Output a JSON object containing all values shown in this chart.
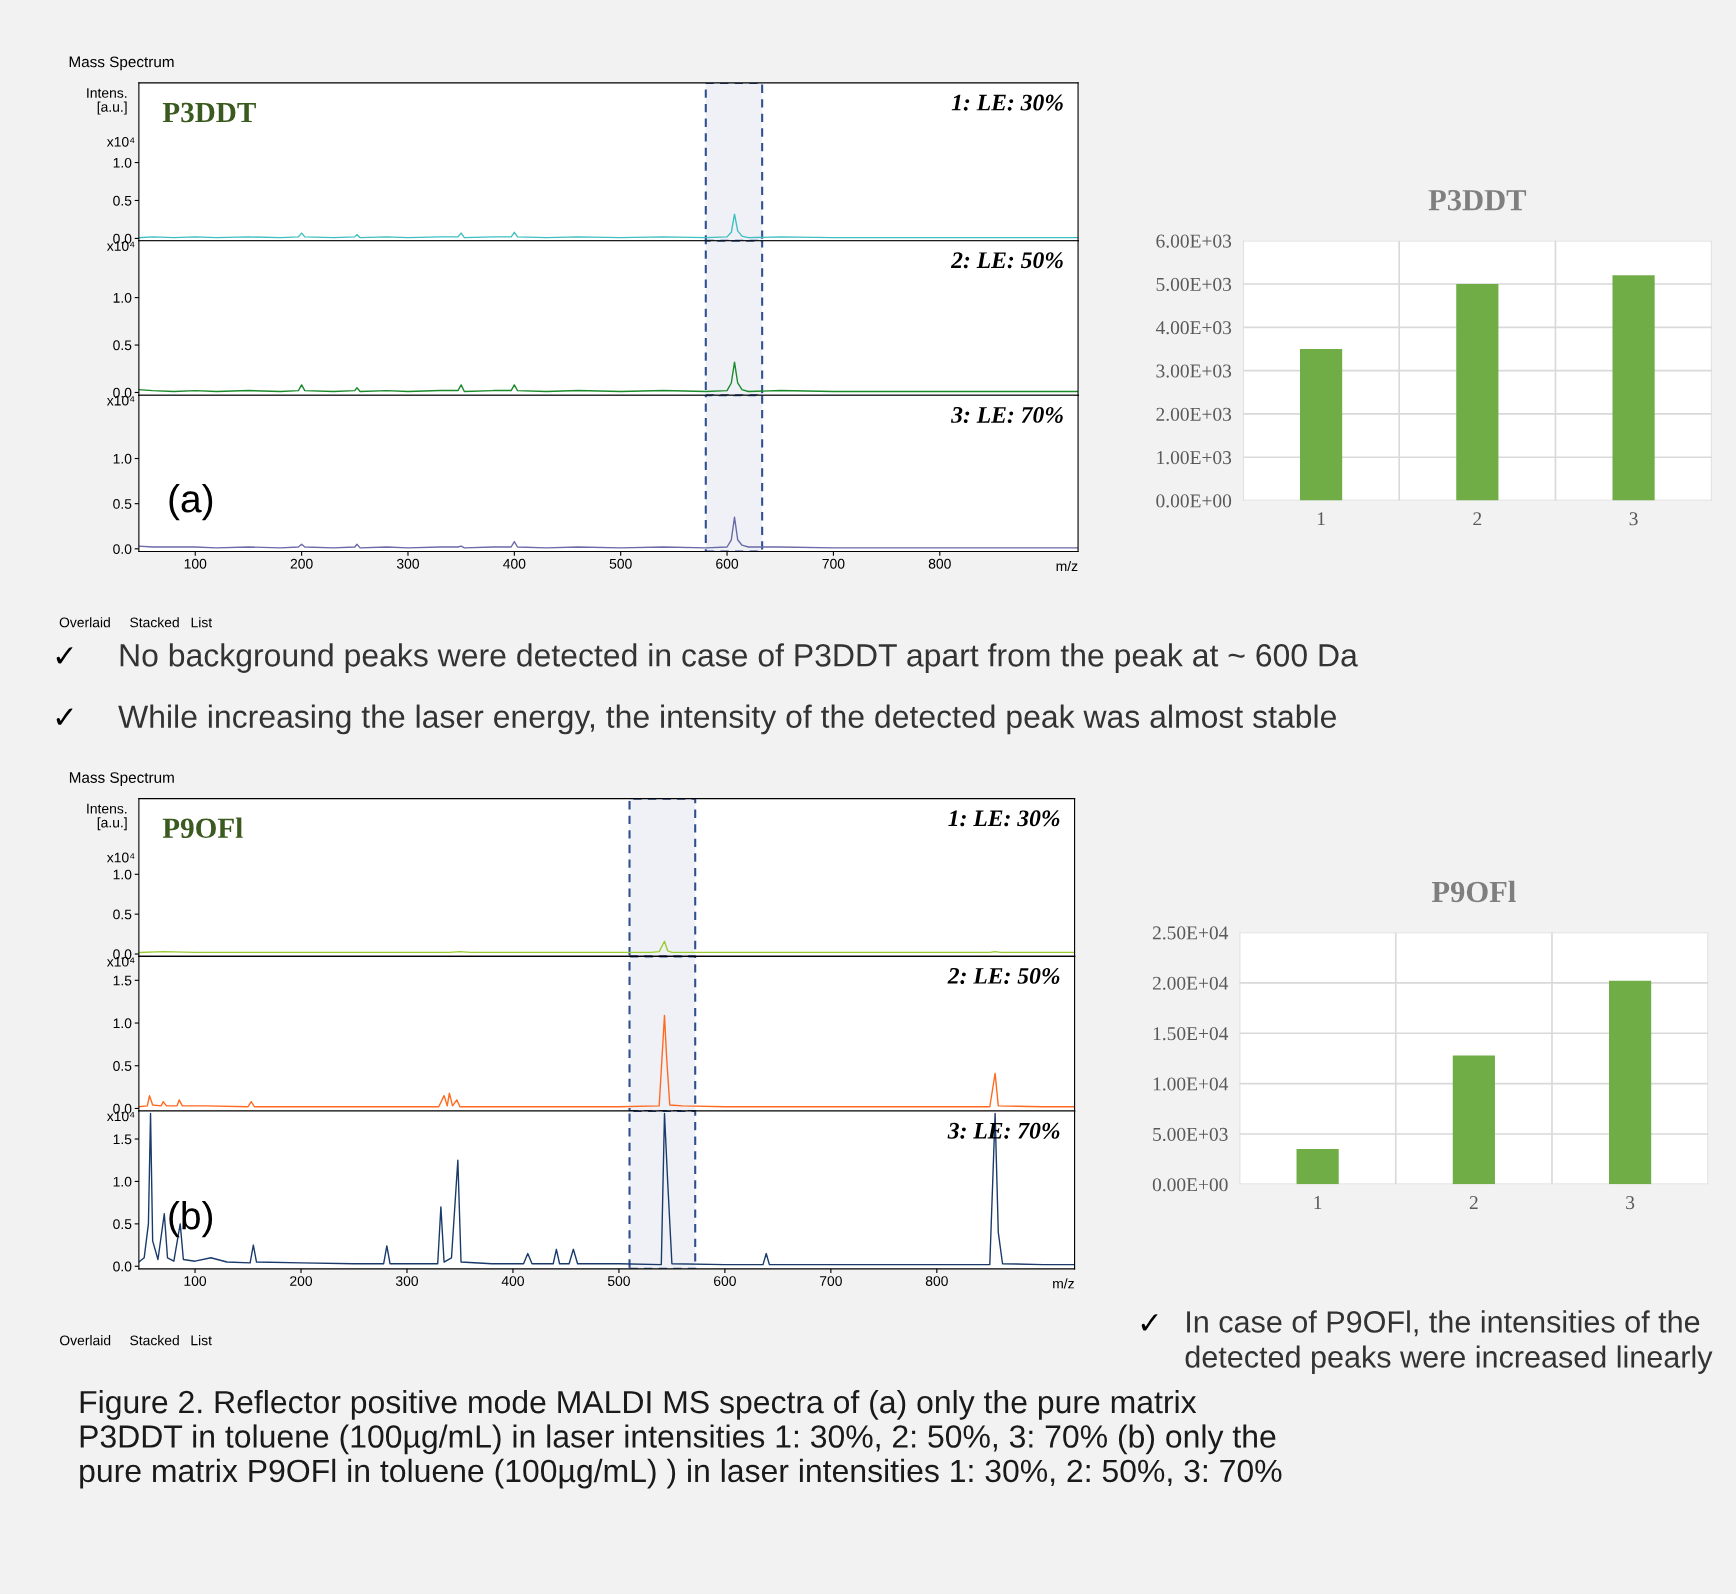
{
  "chart_data": [
    {
      "type": "line",
      "ylabel": "Intens.\n[a.u.]",
      "annotations": [
        "1: LE: 30%",
        "x10⁴",
        "P3DDT",
        "Mass Spectrum"
      ],
      "xlim": [
        47,
        930
      ],
      "xticks": [
        100,
        200,
        300,
        400,
        500,
        600,
        700,
        800
      ],
      "ylim": [
        -0.03,
        2.05
      ],
      "yticks": [
        {
          "value": 0,
          "label": "0.0"
        },
        {
          "value": 0.5,
          "label": "0.5"
        },
        {
          "value": 1,
          "label": "1.0"
        }
      ],
      "tick_labels": "y",
      "series": [
        {
          "color": "#3fbfbf",
          "x": [
            47,
            60,
            80,
            100,
            120,
            150,
            180,
            197,
            200,
            203,
            230,
            250,
            252,
            255,
            280,
            300,
            330,
            347,
            350,
            353,
            380,
            397,
            400,
            403,
            430,
            460,
            500,
            540,
            580,
            600,
            604,
            607,
            610,
            614,
            620,
            650,
            700,
            750,
            800,
            850,
            900,
            930
          ],
          "values": [
            0.01,
            0.02,
            0.01,
            0.02,
            0.01,
            0.02,
            0.01,
            0.02,
            0.07,
            0.02,
            0.01,
            0.02,
            0.05,
            0.01,
            0.02,
            0.01,
            0.02,
            0.02,
            0.07,
            0.01,
            0.02,
            0.02,
            0.08,
            0.02,
            0.01,
            0.02,
            0.01,
            0.02,
            0.01,
            0.02,
            0.08,
            0.32,
            0.1,
            0.03,
            0.01,
            0.02,
            0.01,
            0.01,
            0.01,
            0.01,
            0.01,
            0.01
          ]
        }
      ],
      "bands": [
        {
          "axis": "x",
          "from": 580,
          "to": 633,
          "color": "#2f4f8f"
        }
      ]
    },
    {
      "type": "line",
      "annotations": [
        "2: LE: 50%",
        "x10⁴"
      ],
      "xlim": [
        47,
        930
      ],
      "xticks": [
        100,
        200,
        300,
        400,
        500,
        600,
        700,
        800
      ],
      "ylim": [
        -0.03,
        1.6
      ],
      "yticks": [
        {
          "value": 0,
          "label": "0.0"
        },
        {
          "value": 0.5,
          "label": "0.5"
        },
        {
          "value": 1,
          "label": "1.0"
        }
      ],
      "tick_labels": "y",
      "series": [
        {
          "color": "#1a8a2a",
          "x": [
            47,
            60,
            80,
            100,
            120,
            150,
            180,
            197,
            200,
            203,
            230,
            250,
            252,
            255,
            280,
            300,
            330,
            347,
            350,
            353,
            380,
            397,
            400,
            403,
            430,
            460,
            500,
            540,
            580,
            600,
            604,
            607,
            610,
            614,
            620,
            650,
            700,
            750,
            800,
            850,
            900,
            930
          ],
          "values": [
            0.03,
            0.02,
            0.01,
            0.02,
            0.01,
            0.02,
            0.01,
            0.02,
            0.08,
            0.02,
            0.01,
            0.02,
            0.05,
            0.01,
            0.02,
            0.01,
            0.02,
            0.02,
            0.08,
            0.01,
            0.02,
            0.02,
            0.08,
            0.02,
            0.01,
            0.02,
            0.01,
            0.02,
            0.01,
            0.02,
            0.1,
            0.32,
            0.1,
            0.03,
            0.01,
            0.02,
            0.01,
            0.01,
            0.01,
            0.01,
            0.01,
            0.01
          ]
        }
      ],
      "bands": [
        {
          "axis": "x",
          "from": 580,
          "to": 633,
          "color": "#2f4f8f"
        }
      ]
    },
    {
      "type": "line",
      "xlabel": "m/z",
      "annotations": [
        "3: LE: 70%",
        "x10⁴",
        "(a)",
        "Overlaid",
        "Stacked",
        "List"
      ],
      "xlim": [
        47,
        930
      ],
      "xticks": [
        100,
        200,
        300,
        400,
        500,
        600,
        700,
        800
      ],
      "ylim": [
        -0.03,
        1.7
      ],
      "yticks": [
        {
          "value": 0,
          "label": "0.0"
        },
        {
          "value": 0.5,
          "label": "0.5"
        },
        {
          "value": 1,
          "label": "1.0"
        }
      ],
      "series": [
        {
          "color": "#6a6aa8",
          "x": [
            47,
            60,
            80,
            100,
            120,
            150,
            180,
            197,
            200,
            203,
            230,
            250,
            252,
            255,
            280,
            300,
            330,
            347,
            350,
            353,
            380,
            397,
            400,
            403,
            430,
            460,
            500,
            540,
            580,
            600,
            604,
            607,
            610,
            614,
            620,
            650,
            700,
            750,
            800,
            850,
            900,
            930
          ],
          "values": [
            0.03,
            0.02,
            0.02,
            0.02,
            0.01,
            0.02,
            0.01,
            0.02,
            0.05,
            0.02,
            0.01,
            0.02,
            0.05,
            0.01,
            0.02,
            0.01,
            0.02,
            0.02,
            0.03,
            0.01,
            0.02,
            0.02,
            0.08,
            0.02,
            0.01,
            0.02,
            0.01,
            0.02,
            0.01,
            0.02,
            0.1,
            0.35,
            0.1,
            0.04,
            0.02,
            0.02,
            0.01,
            0.01,
            0.01,
            0.01,
            0.01,
            0.01
          ]
        }
      ],
      "bands": [
        {
          "axis": "x",
          "from": 580,
          "to": 633,
          "color": "#2f4f8f"
        }
      ]
    },
    {
      "type": "bar",
      "title": "P3DDT",
      "categories": [
        "1",
        "2",
        "3"
      ],
      "values": [
        3500,
        5000,
        5200
      ],
      "color": "#70ad47",
      "ylim": [
        0,
        6000
      ],
      "yticks": [
        {
          "value": 0,
          "label": "0.00E+00"
        },
        {
          "value": 1000,
          "label": "1.00E+03"
        },
        {
          "value": 2000,
          "label": "2.00E+03"
        },
        {
          "value": 3000,
          "label": "3.00E+03"
        },
        {
          "value": 4000,
          "label": "4.00E+03"
        },
        {
          "value": 5000,
          "label": "5.00E+03"
        },
        {
          "value": 6000,
          "label": "6.00E+03"
        }
      ],
      "grid": true
    },
    {
      "type": "other",
      "annotations": [
        "✓",
        "No background peaks were detected in case of P3DDT apart from the peak at ~ 600 Da",
        "✓",
        "While increasing the laser energy, the intensity of the detected peak was almost stable"
      ]
    },
    {
      "type": "line",
      "ylabel": "Intens.\n[a.u.]",
      "annotations": [
        "1: LE: 30%",
        "x10⁴",
        "P9OFl",
        "Mass Spectrum"
      ],
      "xlim": [
        47,
        930
      ],
      "xticks": [
        100,
        200,
        300,
        400,
        500,
        600,
        700,
        800
      ],
      "ylim": [
        -0.03,
        1.95
      ],
      "yticks": [
        {
          "value": 0,
          "label": "0.0"
        },
        {
          "value": 0.5,
          "label": "0.5"
        },
        {
          "value": 1,
          "label": "1.0"
        }
      ],
      "tick_labels": "y",
      "series": [
        {
          "color": "#9acd32",
          "x": [
            47,
            70,
            100,
            130,
            160,
            200,
            250,
            300,
            340,
            350,
            360,
            400,
            450,
            500,
            530,
            538,
            543,
            546,
            550,
            580,
            620,
            700,
            750,
            800,
            850,
            855,
            860,
            900,
            930
          ],
          "values": [
            0.02,
            0.03,
            0.02,
            0.02,
            0.02,
            0.02,
            0.02,
            0.02,
            0.02,
            0.03,
            0.02,
            0.02,
            0.02,
            0.02,
            0.02,
            0.03,
            0.16,
            0.04,
            0.02,
            0.02,
            0.02,
            0.02,
            0.02,
            0.02,
            0.02,
            0.03,
            0.02,
            0.02,
            0.02
          ]
        }
      ],
      "bands": [
        {
          "axis": "x",
          "from": 510,
          "to": 572,
          "color": "#2f4f8f"
        }
      ]
    },
    {
      "type": "line",
      "annotations": [
        "2: LE: 50%",
        "x10⁴"
      ],
      "xlim": [
        47,
        930
      ],
      "xticks": [
        100,
        200,
        300,
        400,
        500,
        600,
        700,
        800
      ],
      "ylim": [
        -0.03,
        1.78
      ],
      "yticks": [
        {
          "value": 0,
          "label": "0.0"
        },
        {
          "value": 0.5,
          "label": "0.5"
        },
        {
          "value": 1,
          "label": "1.0"
        },
        {
          "value": 1.5,
          "label": "1.5"
        }
      ],
      "tick_labels": "y",
      "series": [
        {
          "color": "#ff6a20",
          "x": [
            47,
            55,
            57,
            60,
            68,
            70,
            73,
            83,
            85,
            88,
            110,
            150,
            153,
            156,
            200,
            250,
            300,
            330,
            335,
            338,
            340,
            343,
            347,
            350,
            400,
            450,
            500,
            538,
            543,
            545,
            548,
            560,
            600,
            700,
            800,
            850,
            855,
            858,
            900,
            930
          ],
          "values": [
            0.02,
            0.03,
            0.15,
            0.04,
            0.03,
            0.08,
            0.03,
            0.03,
            0.1,
            0.03,
            0.03,
            0.02,
            0.08,
            0.02,
            0.02,
            0.02,
            0.02,
            0.02,
            0.15,
            0.03,
            0.18,
            0.03,
            0.1,
            0.02,
            0.02,
            0.02,
            0.02,
            0.03,
            1.09,
            0.6,
            0.04,
            0.03,
            0.02,
            0.02,
            0.02,
            0.02,
            0.41,
            0.03,
            0.02,
            0.02
          ]
        }
      ],
      "bands": [
        {
          "axis": "x",
          "from": 510,
          "to": 572,
          "color": "#2f4f8f"
        }
      ]
    },
    {
      "type": "line",
      "xlabel": "m/z",
      "annotations": [
        "3: LE: 70%",
        "x10⁴",
        "(b)",
        "Overlaid",
        "Stacked",
        "List"
      ],
      "xlim": [
        47,
        930
      ],
      "xticks": [
        100,
        200,
        300,
        400,
        500,
        600,
        700,
        800
      ],
      "ylim": [
        -0.03,
        1.83
      ],
      "yticks": [
        {
          "value": 0,
          "label": "0.0"
        },
        {
          "value": 0.5,
          "label": "0.5"
        },
        {
          "value": 1,
          "label": "1.0"
        },
        {
          "value": 1.5,
          "label": "1.5"
        }
      ],
      "series": [
        {
          "color": "#1a3a6a",
          "x": [
            47,
            52,
            56,
            58,
            60,
            65,
            71,
            74,
            80,
            86,
            89,
            100,
            115,
            130,
            152,
            155,
            158,
            200,
            250,
            278,
            281,
            284,
            300,
            329,
            332,
            335,
            342,
            348,
            351,
            380,
            410,
            414,
            418,
            438,
            441,
            444,
            453,
            457,
            461,
            500,
            540,
            543,
            546,
            550,
            600,
            636,
            639,
            642,
            700,
            800,
            850,
            855,
            858,
            862,
            900,
            930
          ],
          "values": [
            0.05,
            0.1,
            0.5,
            1.8,
            0.3,
            0.08,
            0.62,
            0.1,
            0.06,
            0.5,
            0.08,
            0.06,
            0.1,
            0.05,
            0.04,
            0.25,
            0.05,
            0.04,
            0.03,
            0.03,
            0.24,
            0.03,
            0.03,
            0.03,
            0.7,
            0.05,
            0.1,
            1.25,
            0.05,
            0.03,
            0.03,
            0.15,
            0.03,
            0.03,
            0.2,
            0.03,
            0.03,
            0.2,
            0.03,
            0.03,
            0.02,
            1.8,
            1.0,
            0.03,
            0.02,
            0.02,
            0.15,
            0.02,
            0.02,
            0.02,
            0.02,
            1.8,
            0.4,
            0.03,
            0.02,
            0.02
          ]
        }
      ],
      "bands": [
        {
          "axis": "x",
          "from": 510,
          "to": 572,
          "color": "#2f4f8f"
        }
      ]
    },
    {
      "type": "bar",
      "title": "P9OFl",
      "categories": [
        "1",
        "2",
        "3"
      ],
      "values": [
        3500,
        12800,
        20200
      ],
      "color": "#70ad47",
      "ylim": [
        0,
        25000
      ],
      "yticks": [
        {
          "value": 0,
          "label": "0.00E+00"
        },
        {
          "value": 5000,
          "label": "5.00E+03"
        },
        {
          "value": 10000,
          "label": "1.00E+04"
        },
        {
          "value": 15000,
          "label": "1.50E+04"
        },
        {
          "value": 20000,
          "label": "2.00E+04"
        },
        {
          "value": 25000,
          "label": "2.50E+04"
        }
      ],
      "grid": true
    },
    {
      "type": "other",
      "annotations": [
        "✓",
        "In case of P9OFl, the intensities of the detected peaks were increased linearly"
      ]
    },
    {
      "type": "other",
      "annotations": [
        "Figure 2. Reflector positive mode MALDI MS spectra of (a) only the pure matrix P3DDT in toluene (100µg/mL) in laser intensities 1: 30%, 2: 50%, 3: 70% (b) only the pure matrix P9OFl in toluene (100µg/mL) ) in laser intensities 1: 30%, 2: 50%, 3: 70%"
      ]
    }
  ]
}
